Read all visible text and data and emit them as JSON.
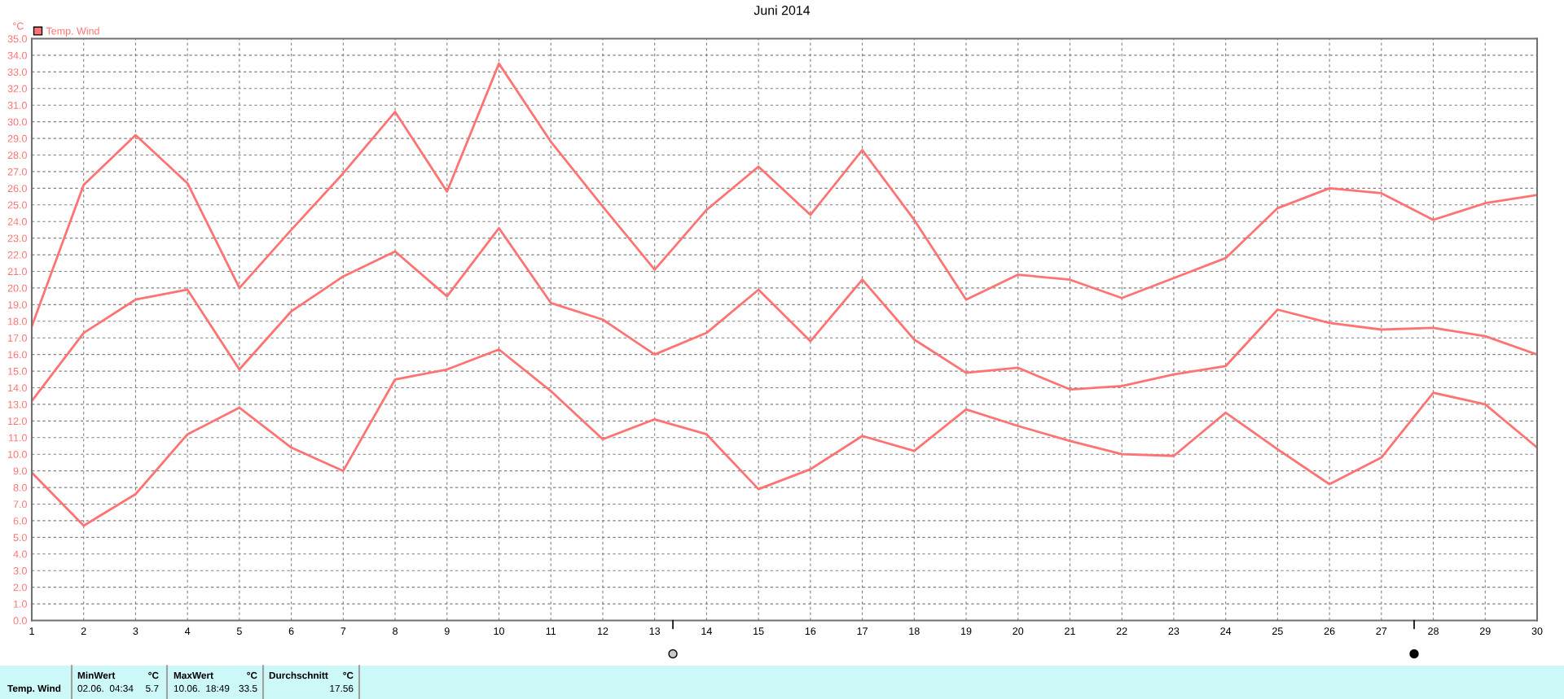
{
  "chart_data": {
    "type": "line",
    "title": "Juni 2014",
    "ylabel": "°C",
    "x": [
      1,
      2,
      3,
      4,
      5,
      6,
      7,
      8,
      9,
      10,
      11,
      12,
      13,
      14,
      15,
      16,
      17,
      18,
      19,
      20,
      21,
      22,
      23,
      24,
      25,
      26,
      27,
      28,
      29,
      30
    ],
    "series": [
      {
        "name": "Temp. Wind",
        "color": "#ff7373",
        "values": [
          17.7,
          26.2,
          29.2,
          26.3,
          20.0,
          23.5,
          26.9,
          30.6,
          25.8,
          33.5,
          28.8,
          24.9,
          21.1,
          24.7,
          27.3,
          24.4,
          28.3,
          24.1,
          19.3,
          20.8,
          20.5,
          19.4,
          20.6,
          21.8,
          24.8,
          26.0,
          25.7,
          24.1,
          25.1,
          25.6
        ]
      },
      {
        "color": "#ff7373",
        "values": [
          13.2,
          17.3,
          19.3,
          19.9,
          15.1,
          18.6,
          20.7,
          22.2,
          19.5,
          23.6,
          19.1,
          18.1,
          16.0,
          17.3,
          19.9,
          16.8,
          20.5,
          16.9,
          14.9,
          15.2,
          13.9,
          14.1,
          14.8,
          15.3,
          18.7,
          17.9,
          17.5,
          17.6,
          17.1,
          16.0
        ]
      },
      {
        "color": "#ff7373",
        "values": [
          8.9,
          5.7,
          7.6,
          11.2,
          12.8,
          10.4,
          9.0,
          14.5,
          15.1,
          16.3,
          13.8,
          10.9,
          12.1,
          11.2,
          7.9,
          9.1,
          11.1,
          10.2,
          12.7,
          11.7,
          10.8,
          10.0,
          9.9,
          12.5,
          10.3,
          8.2,
          9.8,
          13.7,
          13.0,
          10.4
        ]
      }
    ],
    "xlim": [
      1,
      30
    ],
    "xticks": [
      1,
      2,
      3,
      4,
      5,
      6,
      7,
      8,
      9,
      10,
      11,
      12,
      13,
      14,
      15,
      16,
      17,
      18,
      19,
      20,
      21,
      22,
      23,
      24,
      25,
      26,
      27,
      28,
      29,
      30
    ],
    "ylim": [
      0,
      35
    ],
    "yticks": [
      {
        "value": 0,
        "label": "0.0"
      },
      {
        "value": 1,
        "label": "1.0"
      },
      {
        "value": 2,
        "label": "2.0"
      },
      {
        "value": 3,
        "label": "3.0"
      },
      {
        "value": 4,
        "label": "4.0"
      },
      {
        "value": 5,
        "label": "5.0"
      },
      {
        "value": 6,
        "label": "6.0"
      },
      {
        "value": 7,
        "label": "7.0"
      },
      {
        "value": 8,
        "label": "8.0"
      },
      {
        "value": 9,
        "label": "9.0"
      },
      {
        "value": 10,
        "label": "10.0"
      },
      {
        "value": 11,
        "label": "11.0"
      },
      {
        "value": 12,
        "label": "12.0"
      },
      {
        "value": 13,
        "label": "13.0"
      },
      {
        "value": 14,
        "label": "14.0"
      },
      {
        "value": 15,
        "label": "15.0"
      },
      {
        "value": 16,
        "label": "16.0"
      },
      {
        "value": 17,
        "label": "17.0"
      },
      {
        "value": 18,
        "label": "18.0"
      },
      {
        "value": 19,
        "label": "19.0"
      },
      {
        "value": 20,
        "label": "20.0"
      },
      {
        "value": 21,
        "label": "21.0"
      },
      {
        "value": 22,
        "label": "22.0"
      },
      {
        "value": 23,
        "label": "23.0"
      },
      {
        "value": 24,
        "label": "24.0"
      },
      {
        "value": 25,
        "label": "25.0"
      },
      {
        "value": 26,
        "label": "26.0"
      },
      {
        "value": 27,
        "label": "27.0"
      },
      {
        "value": 28,
        "label": "28.0"
      },
      {
        "value": 29,
        "label": "29.0"
      },
      {
        "value": 30,
        "label": "30.0"
      },
      {
        "value": 31,
        "label": "31.0"
      },
      {
        "value": 32,
        "label": "32.0"
      },
      {
        "value": 33,
        "label": "33.0"
      },
      {
        "value": 34,
        "label": "34.0"
      },
      {
        "value": 35,
        "label": "35.0"
      }
    ],
    "grid": true,
    "legend": "top left",
    "marker": "none",
    "line_style": "solid",
    "annotations": [
      "Temp. Wind",
      "MinWert",
      "°C",
      "02.06.  04:34",
      "5.7",
      "MaxWert",
      "°C",
      "10.06.  18:49",
      "33.5",
      "Durchschnitt",
      "°C",
      "17.56"
    ]
  }
}
